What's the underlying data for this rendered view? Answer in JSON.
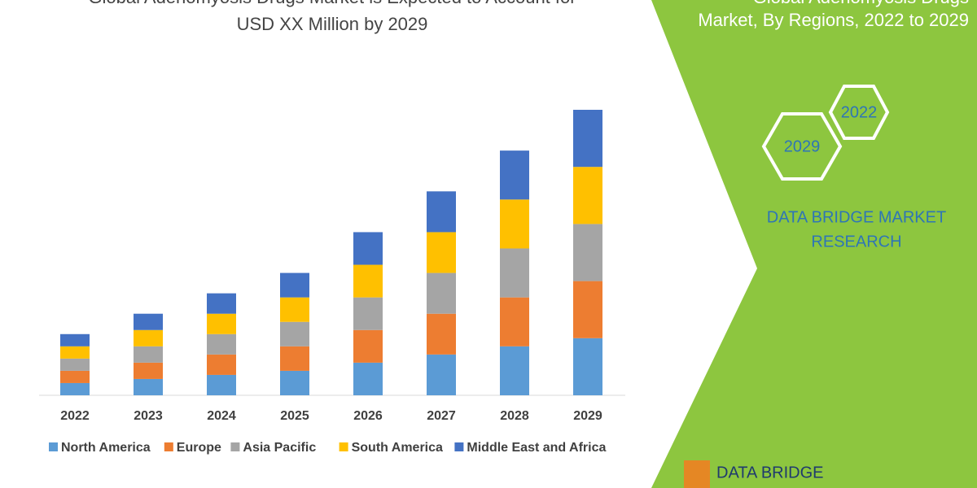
{
  "chart_data": {
    "type": "bar",
    "stacked": true,
    "title": [
      "Global Adenomyosis Drugs Market is Expected to Account for",
      "USD XX Million by 2029"
    ],
    "categories": [
      "2022",
      "2023",
      "2024",
      "2025",
      "2026",
      "2027",
      "2028",
      "2029"
    ],
    "series": [
      {
        "name": "North America",
        "color": "#5b9bd5",
        "values": [
          15,
          20,
          25,
          30,
          40,
          50,
          60,
          70
        ]
      },
      {
        "name": "Europe",
        "color": "#ed7d31",
        "values": [
          15,
          20,
          25,
          30,
          40,
          50,
          60,
          70
        ]
      },
      {
        "name": "Asia Pacific",
        "color": "#a5a5a5",
        "values": [
          15,
          20,
          25,
          30,
          40,
          50,
          60,
          70
        ]
      },
      {
        "name": "South America",
        "color": "#ffc000",
        "values": [
          15,
          20,
          25,
          30,
          40,
          50,
          60,
          70
        ]
      },
      {
        "name": "Middle East and Africa",
        "color": "#4472c4",
        "values": [
          15,
          20,
          25,
          30,
          40,
          50,
          60,
          70
        ]
      }
    ],
    "legend": "bottom"
  },
  "side_panel": {
    "title": [
      "Global Adenomyosis Drugs",
      "Market, By Regions, 2022 to 2029"
    ],
    "hexagons": [
      "2022",
      "2029"
    ],
    "brand": [
      "DATA BRIDGE MARKET",
      "RESEARCH"
    ],
    "logo": "DATA BRIDGE"
  }
}
